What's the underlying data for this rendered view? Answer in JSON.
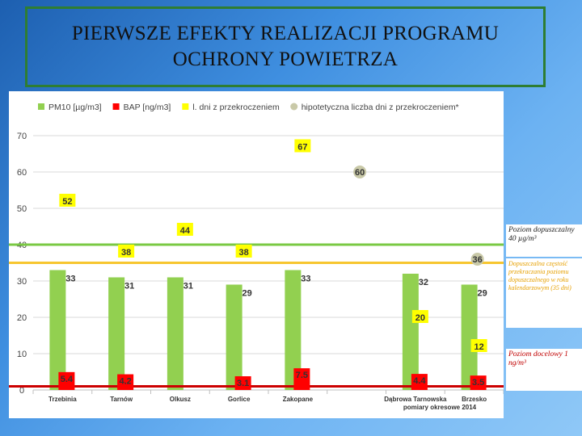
{
  "page_title_line1": "PIERWSZE EFEKTY REALIZACJI PROGRAMU",
  "page_title_line2": "OCHRONY POWIETRZA",
  "chart_data": {
    "type": "bar",
    "categories": [
      "Trzebinia",
      "Tarnów",
      "Olkusz",
      "Gorlice",
      "Zakopane",
      "",
      "Dąbrowa Tarnowska",
      "Brzesko"
    ],
    "series": [
      {
        "name": "PM10 [µg/m3]",
        "color": "#92d050",
        "values": [
          33,
          31,
          31,
          29,
          33,
          null,
          32,
          29
        ]
      },
      {
        "name": "BAP [ng/m3]",
        "color": "#ff0000",
        "values": [
          5.4,
          4.2,
          null,
          3.1,
          7.5,
          null,
          4.4,
          3.5
        ]
      },
      {
        "name": "l. dni z przekroczeniem",
        "color": "#ffff00",
        "values": [
          52,
          38,
          44,
          38,
          67,
          null,
          20,
          12
        ]
      },
      {
        "name": "hipotetyczna liczba dni z przekroczeniem*",
        "color": "#c9c9a8",
        "values": [
          null,
          null,
          null,
          null,
          null,
          60,
          null,
          36
        ]
      }
    ],
    "ylim": [
      0,
      70
    ],
    "yticks": [
      0,
      10,
      20,
      30,
      40,
      50,
      60,
      70
    ],
    "grid": true,
    "legend_position": "top",
    "reference_lines": [
      {
        "value": 40,
        "color": "#7ac943"
      },
      {
        "value": 35,
        "color": "#f7c62f"
      },
      {
        "value": 1,
        "color": "#cc0000"
      }
    ],
    "footnote": "pomiary okresowe 2014"
  },
  "side_labels": {
    "pm10_limit": "Poziom dopuszczalny 40 µg/m³",
    "days_limit": "Dopuszczalna częstość przekraczania poziomu dopuszczalnego w roku kalendarzowym (35 dni)",
    "bap_limit": "Poziom docelowy 1 ng/m³"
  }
}
